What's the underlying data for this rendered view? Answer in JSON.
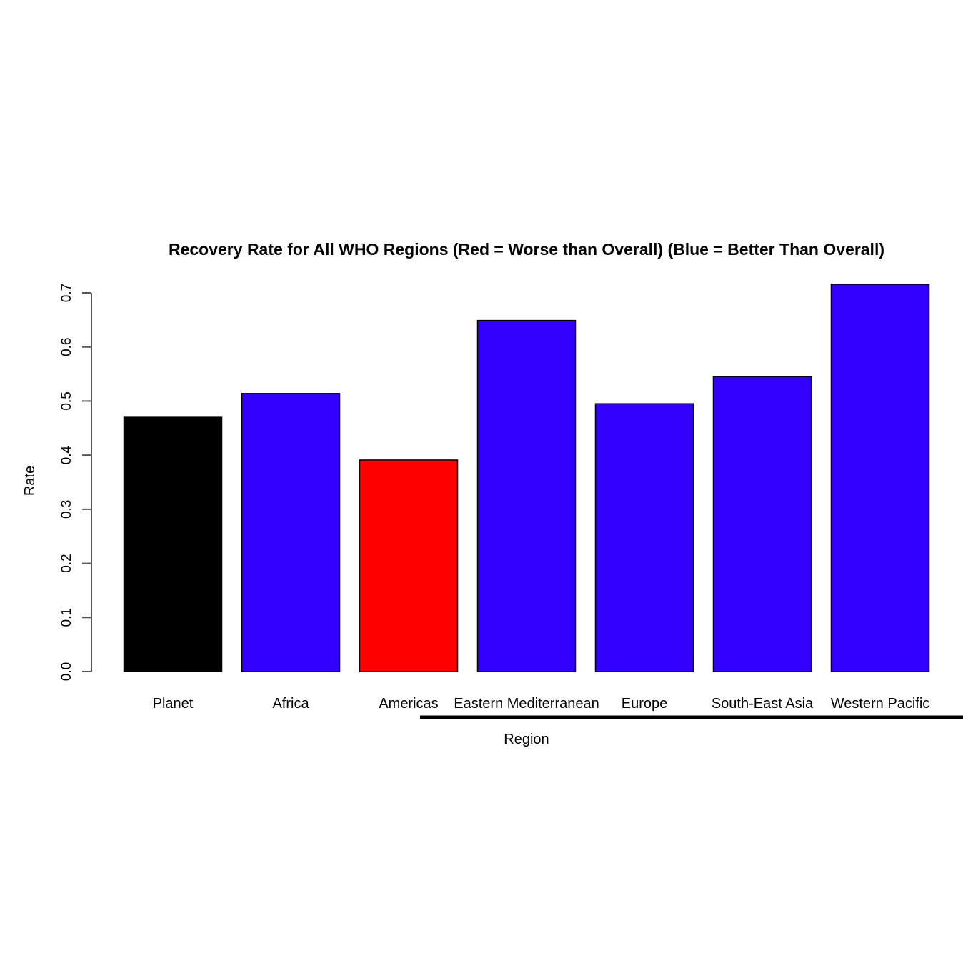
{
  "chart_data": {
    "type": "bar",
    "title": "Recovery Rate for All WHO Regions (Red = Worse than Overall) (Blue = Better Than Overall)",
    "xlabel": "Region",
    "ylabel": "Rate",
    "categories": [
      "Planet",
      "Africa",
      "Americas",
      "Eastern Mediterranean",
      "Europe",
      "South-East Asia",
      "Western Pacific"
    ],
    "values": [
      0.47,
      0.514,
      0.391,
      0.649,
      0.495,
      0.545,
      0.716
    ],
    "bar_colors": [
      "#000000",
      "#3300ff",
      "#ff0000",
      "#3300ff",
      "#3300ff",
      "#3300ff",
      "#3300ff"
    ],
    "yticks": [
      "0.0",
      "0.1",
      "0.2",
      "0.3",
      "0.4",
      "0.5",
      "0.6",
      "0.7"
    ],
    "ylim": [
      0,
      0.7
    ],
    "grid": false,
    "legend": "none"
  }
}
